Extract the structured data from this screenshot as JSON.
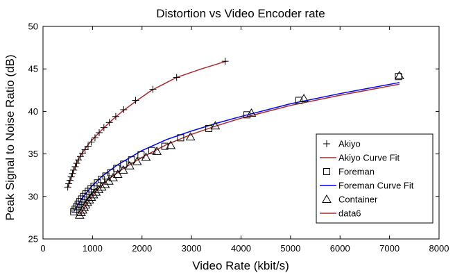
{
  "chart_data": {
    "type": "line",
    "title": "Distortion vs Video Encoder rate",
    "xlabel": "Video Rate (kbit/s)",
    "ylabel": "Peak Signal to Noise Ratio (dB)",
    "xlim": [
      0,
      8000
    ],
    "ylim": [
      25,
      50
    ],
    "xticks": [
      0,
      1000,
      2000,
      3000,
      4000,
      5000,
      6000,
      7000,
      8000
    ],
    "yticks": [
      25,
      30,
      35,
      40,
      45,
      50
    ],
    "grid": false,
    "legend_position": "right",
    "series": [
      {
        "name": "Akiyo",
        "kind": "markers",
        "marker": "plus",
        "color": "#000000",
        "x": [
          500,
          520,
          545,
          570,
          595,
          620,
          650,
          680,
          715,
          755,
          800,
          850,
          910,
          975,
          1050,
          1135,
          1230,
          1340,
          1470,
          1630,
          1870,
          2220,
          2700,
          3680
        ],
        "y": [
          31.1,
          31.5,
          31.9,
          32.3,
          32.7,
          33.1,
          33.5,
          33.9,
          34.3,
          34.7,
          35.1,
          35.5,
          35.9,
          36.4,
          36.9,
          37.5,
          38.1,
          38.7,
          39.4,
          40.2,
          41.3,
          42.6,
          44.0,
          45.9
        ]
      },
      {
        "name": "Akiyo Curve Fit",
        "kind": "line",
        "color": "#a52a2a",
        "x": [
          500,
          600,
          700,
          800,
          900,
          1000,
          1200,
          1400,
          1600,
          1900,
          2200,
          2700,
          3200,
          3700
        ],
        "y": [
          31.1,
          32.8,
          34.2,
          35.2,
          36.0,
          36.7,
          37.9,
          39.0,
          40.0,
          41.3,
          42.5,
          44.0,
          45.0,
          45.9
        ]
      },
      {
        "name": "Foreman",
        "kind": "markers",
        "marker": "square",
        "color": "#000000",
        "x": [
          620,
          650,
          680,
          710,
          745,
          780,
          820,
          865,
          915,
          970,
          1030,
          1100,
          1180,
          1270,
          1370,
          1490,
          1630,
          1790,
          1980,
          2200,
          2460,
          2780,
          3350,
          4120,
          5170,
          7180
        ],
        "y": [
          28.2,
          28.5,
          28.8,
          29.1,
          29.4,
          29.7,
          30.0,
          30.3,
          30.6,
          30.9,
          31.2,
          31.6,
          32.0,
          32.4,
          32.8,
          33.3,
          33.8,
          34.3,
          34.9,
          35.4,
          35.9,
          36.9,
          38.0,
          39.6,
          41.3,
          44.1
        ]
      },
      {
        "name": "Foreman Curve Fit",
        "kind": "line",
        "color": "#0000ff",
        "x": [
          620,
          800,
          1000,
          1200,
          1500,
          2000,
          2500,
          3000,
          3500,
          4000,
          5000,
          6000,
          7200
        ],
        "y": [
          28.2,
          29.9,
          31.3,
          32.4,
          33.7,
          35.4,
          36.7,
          37.7,
          38.6,
          39.4,
          40.9,
          42.1,
          43.4
        ]
      },
      {
        "name": "Container",
        "kind": "markers",
        "marker": "triangle",
        "color": "#000000",
        "x": [
          740,
          770,
          800,
          830,
          860,
          895,
          935,
          975,
          1020,
          1070,
          1125,
          1185,
          1255,
          1330,
          1415,
          1510,
          1620,
          1750,
          1900,
          2080,
          2300,
          2580,
          2980,
          3480,
          4210,
          5270,
          7200
        ],
        "y": [
          27.8,
          28.1,
          28.4,
          28.7,
          29.0,
          29.3,
          29.6,
          29.9,
          30.2,
          30.5,
          30.8,
          31.1,
          31.4,
          31.8,
          32.2,
          32.6,
          33.1,
          33.6,
          34.1,
          34.6,
          35.3,
          36.0,
          37.0,
          38.3,
          39.8,
          41.5,
          44.2
        ]
      },
      {
        "name": "data6",
        "kind": "line",
        "color": "#a52a2a",
        "x": [
          740,
          900,
          1100,
          1300,
          1600,
          2000,
          2500,
          3000,
          3500,
          4000,
          5000,
          6000,
          7200
        ],
        "y": [
          27.8,
          29.3,
          30.8,
          31.9,
          33.2,
          34.6,
          36.1,
          37.3,
          38.3,
          39.2,
          40.7,
          41.9,
          43.2
        ]
      }
    ]
  }
}
